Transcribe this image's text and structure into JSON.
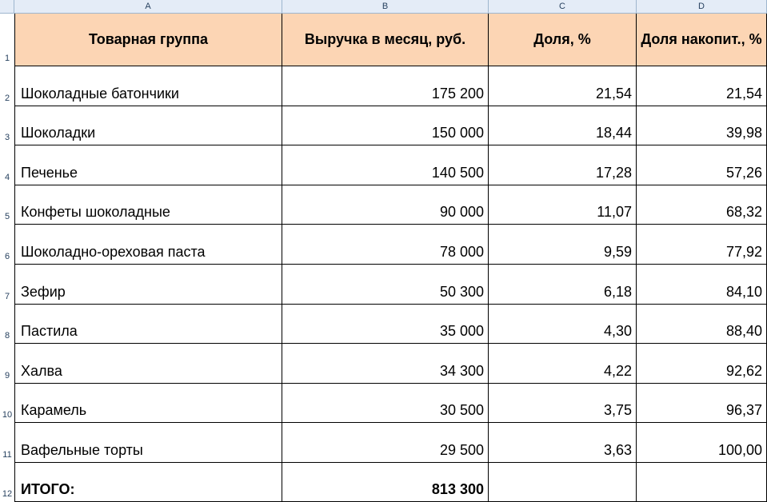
{
  "columns": [
    "A",
    "B",
    "C",
    "D"
  ],
  "header": {
    "row": "1",
    "a": "Товарная группа",
    "b": "Выручка в месяц, руб.",
    "c": "Доля, %",
    "d": "Доля накопит., %"
  },
  "rows": [
    {
      "n": "2",
      "a": "Шоколадные батончики",
      "b": "175 200",
      "c": "21,54",
      "d": "21,54"
    },
    {
      "n": "3",
      "a": "Шоколадки",
      "b": "150 000",
      "c": "18,44",
      "d": "39,98"
    },
    {
      "n": "4",
      "a": "Печенье",
      "b": "140 500",
      "c": "17,28",
      "d": "57,26"
    },
    {
      "n": "5",
      "a": "Конфеты шоколадные",
      "b": "90 000",
      "c": "11,07",
      "d": "68,32"
    },
    {
      "n": "6",
      "a": "Шоколадно-ореховая паста",
      "b": "78 000",
      "c": "9,59",
      "d": "77,92"
    },
    {
      "n": "7",
      "a": "Зефир",
      "b": "50 300",
      "c": "6,18",
      "d": "84,10"
    },
    {
      "n": "8",
      "a": "Пастила",
      "b": "35 000",
      "c": "4,30",
      "d": "88,40"
    },
    {
      "n": "9",
      "a": "Халва",
      "b": "34 300",
      "c": "4,22",
      "d": "92,62"
    },
    {
      "n": "10",
      "a": "Карамель",
      "b": "30 500",
      "c": "3,75",
      "d": "96,37"
    },
    {
      "n": "11",
      "a": "Вафельные торты",
      "b": "29 500",
      "c": "3,63",
      "d": "100,00"
    }
  ],
  "total": {
    "n": "12",
    "a": "ИТОГО:",
    "b": "813 300",
    "c": "",
    "d": ""
  },
  "colors": {
    "header_fill": "#fcd5b4",
    "col_header_fill": "#e4ecf7"
  }
}
